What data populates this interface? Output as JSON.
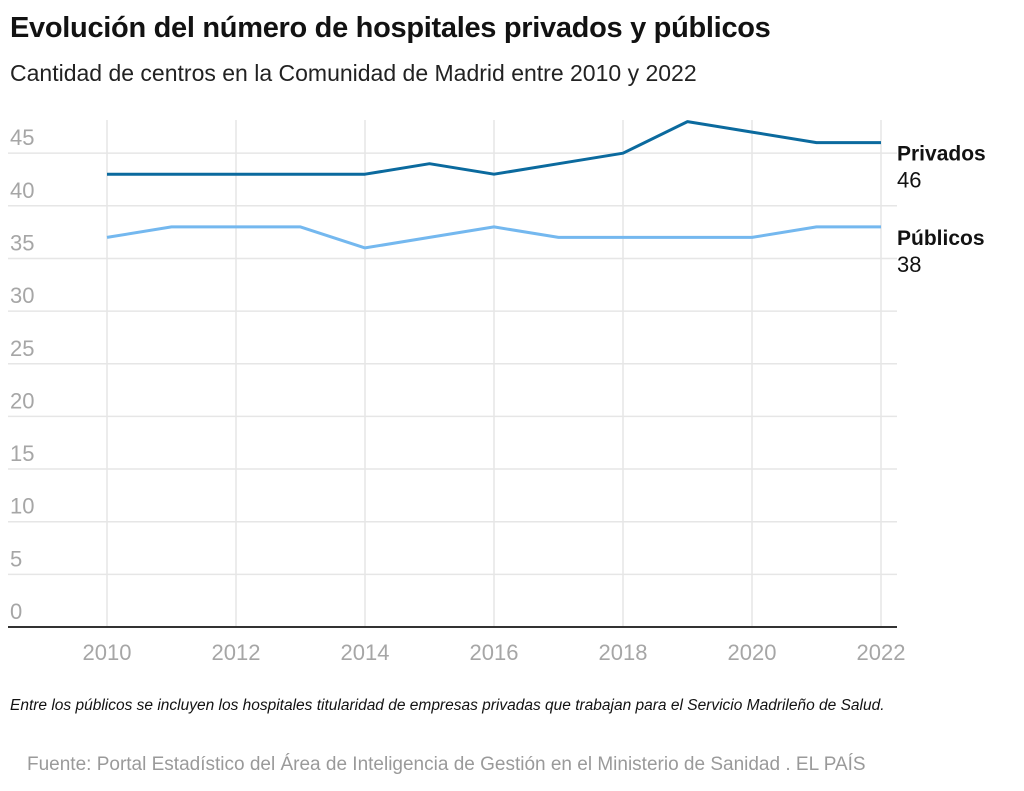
{
  "header": {
    "title": "Evolución del número de hospitales privados y públicos",
    "subtitle": "Cantidad de centros en la Comunidad de Madrid entre 2010 y 2022"
  },
  "footer": {
    "note": "Entre los públicos se incluyen los hospitales titularidad de empresas privadas que trabajan para el Servicio Madrileño de Salud.",
    "source": "Fuente: Portal Estadístico del Área de Inteligencia de Gestión en el Ministerio de Sanidad . EL PAÍS"
  },
  "chart_data": {
    "type": "line",
    "title": "Evolución del número de hospitales privados y públicos",
    "subtitle": "Cantidad de centros en la Comunidad de Madrid entre 2010 y 2022",
    "xlabel": "",
    "ylabel": "",
    "x": [
      2010,
      2011,
      2012,
      2013,
      2014,
      2015,
      2016,
      2017,
      2018,
      2019,
      2020,
      2021,
      2022
    ],
    "x_ticks": [
      "2010",
      "2012",
      "2014",
      "2016",
      "2018",
      "2020",
      "2022"
    ],
    "y_ticks": [
      "0",
      "5",
      "10",
      "15",
      "20",
      "25",
      "30",
      "35",
      "40",
      "45"
    ],
    "ylim": [
      0,
      48
    ],
    "xlim": [
      2010,
      2022
    ],
    "grid": true,
    "legend": "direct-labels-right",
    "series": [
      {
        "name": "Privados",
        "color": "#0b6a9e",
        "end_label": "46",
        "values": [
          43,
          43,
          43,
          43,
          43,
          44,
          43,
          44,
          45,
          48,
          47,
          46,
          46
        ]
      },
      {
        "name": "Públicos",
        "color": "#74b8ef",
        "end_label": "38",
        "values": [
          37,
          38,
          38,
          38,
          36,
          37,
          38,
          37,
          37,
          37,
          37,
          38,
          38
        ]
      }
    ]
  }
}
